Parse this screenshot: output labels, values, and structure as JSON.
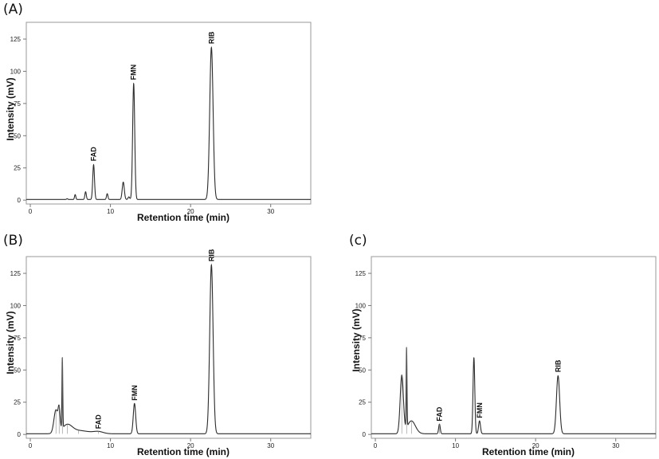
{
  "chart_data": [
    {
      "type": "line",
      "panel_label": "(A)",
      "xlabel": "Retention time (min)",
      "ylabel": "Intensity (mV)",
      "xlim": [
        -0.5,
        35
      ],
      "ylim": [
        -3,
        138
      ],
      "x_ticks": [
        0,
        10,
        20,
        30
      ],
      "y_ticks": [
        0,
        25,
        50,
        75,
        100,
        125
      ],
      "baseline": 0.5,
      "peaks": [
        {
          "x": 4.6,
          "y": 0.6,
          "w": 0.08
        },
        {
          "x": 5.6,
          "y": 3.8,
          "w": 0.08
        },
        {
          "x": 6.9,
          "y": 6.0,
          "w": 0.09
        },
        {
          "x": 7.9,
          "y": 27,
          "w": 0.11
        },
        {
          "x": 9.6,
          "y": 4.5,
          "w": 0.09
        },
        {
          "x": 11.6,
          "y": 13.5,
          "w": 0.13
        },
        {
          "x": 12.3,
          "y": 2.0,
          "w": 0.1
        },
        {
          "x": 12.9,
          "y": 90,
          "w": 0.13
        },
        {
          "x": 22.6,
          "y": 118,
          "w": 0.21
        }
      ],
      "annotations": [
        {
          "text": "FAD",
          "x": 7.9,
          "y": 29
        },
        {
          "text": "FMN",
          "x": 12.9,
          "y": 92
        },
        {
          "text": "RIB",
          "x": 22.6,
          "y": 120
        }
      ]
    },
    {
      "type": "line",
      "panel_label": "(B)",
      "xlabel": "Retention time (min)",
      "ylabel": "Intensity (mV)",
      "xlim": [
        -0.5,
        35
      ],
      "ylim": [
        -3,
        138
      ],
      "x_ticks": [
        0,
        10,
        20,
        30
      ],
      "y_ticks": [
        0,
        25,
        50,
        75,
        100,
        125
      ],
      "baseline": 0.5,
      "peaks": [
        {
          "x": 3.2,
          "y": 18,
          "w": 0.25
        },
        {
          "x": 3.6,
          "y": 15,
          "w": 0.12
        },
        {
          "x": 4.0,
          "y": 55,
          "w": 0.05
        },
        {
          "x": 4.6,
          "y": 6,
          "w": 0.6
        },
        {
          "x": 6.0,
          "y": 2.5,
          "w": 1.3
        },
        {
          "x": 8.5,
          "y": 1.5,
          "w": 0.6
        },
        {
          "x": 13.0,
          "y": 23.5,
          "w": 0.15
        },
        {
          "x": 22.6,
          "y": 131,
          "w": 0.21
        }
      ],
      "annotations": [
        {
          "text": "FAD",
          "x": 8.5,
          "y": 3
        },
        {
          "text": "FMN",
          "x": 13.0,
          "y": 25
        },
        {
          "text": "RIB",
          "x": 22.6,
          "y": 133
        }
      ]
    },
    {
      "type": "line",
      "panel_label": "(c)",
      "xlabel": "Retention time (min)",
      "ylabel": "Intensity (mV)",
      "xlim": [
        -0.5,
        35
      ],
      "ylim": [
        -3,
        138
      ],
      "x_ticks": [
        0,
        10,
        20,
        30
      ],
      "y_ticks": [
        0,
        25,
        50,
        75,
        100,
        125
      ],
      "baseline": 0.5,
      "peaks": [
        {
          "x": 3.3,
          "y": 45,
          "w": 0.2
        },
        {
          "x": 3.9,
          "y": 62,
          "w": 0.05
        },
        {
          "x": 4.5,
          "y": 10,
          "w": 0.5
        },
        {
          "x": 8.0,
          "y": 7.5,
          "w": 0.1
        },
        {
          "x": 12.3,
          "y": 59,
          "w": 0.11
        },
        {
          "x": 13.0,
          "y": 10,
          "w": 0.12
        },
        {
          "x": 22.8,
          "y": 45,
          "w": 0.2
        }
      ],
      "annotations": [
        {
          "text": "FAD",
          "x": 8.0,
          "y": 9
        },
        {
          "text": "FMN",
          "x": 13.0,
          "y": 11.5
        },
        {
          "text": "RIB",
          "x": 22.8,
          "y": 47
        }
      ]
    }
  ]
}
